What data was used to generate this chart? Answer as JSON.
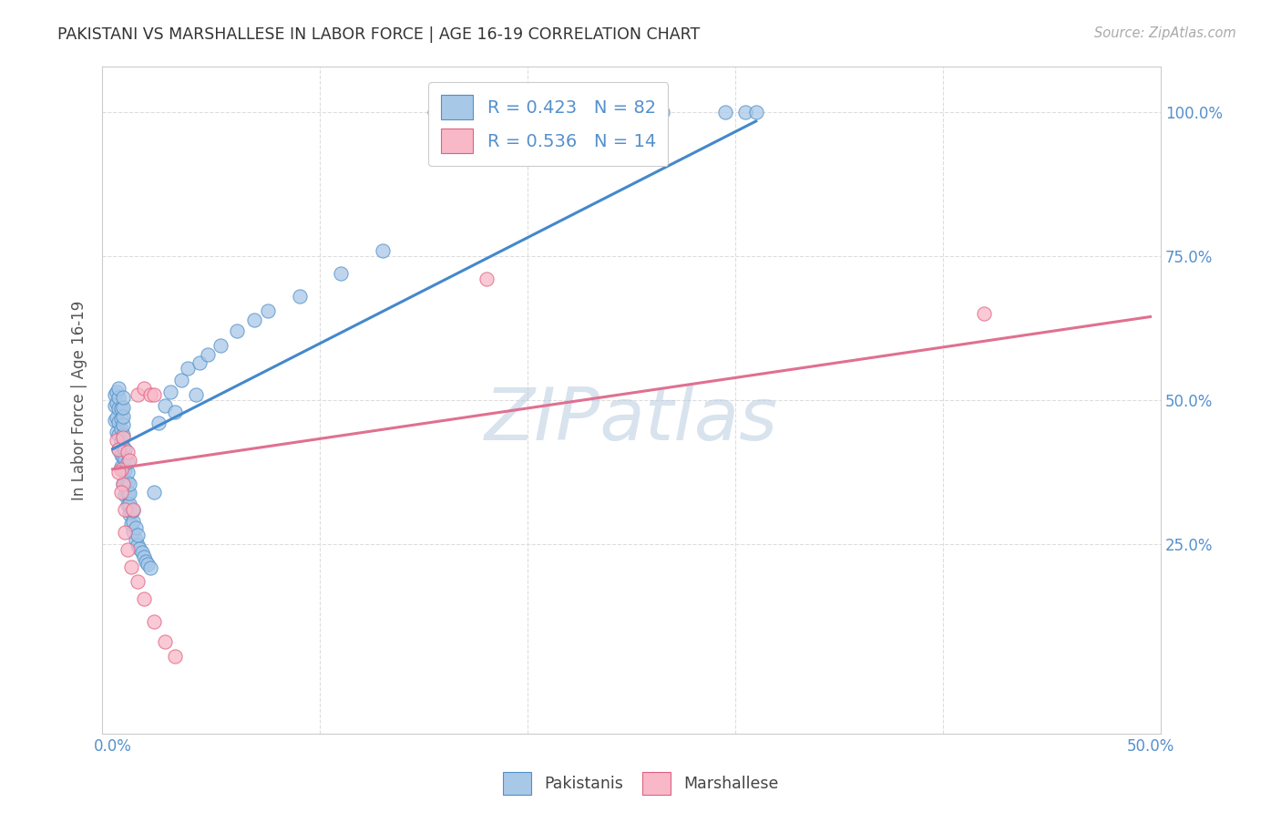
{
  "title": "PAKISTANI VS MARSHALLESE IN LABOR FORCE | AGE 16-19 CORRELATION CHART",
  "source": "Source: ZipAtlas.com",
  "ylabel_label": "In Labor Force | Age 16-19",
  "R_blue": 0.423,
  "N_blue": 82,
  "R_pink": 0.536,
  "N_pink": 14,
  "blue_fill": "#A8C8E8",
  "blue_edge": "#5090C8",
  "pink_fill": "#F8B8C8",
  "pink_edge": "#E06080",
  "trend_blue": "#4488CC",
  "trend_pink": "#E07090",
  "watermark_color": "#B8CCE0",
  "background_color": "#FFFFFF",
  "title_color": "#333333",
  "source_color": "#AAAAAA",
  "tick_color": "#5590CC",
  "ylabel_color": "#555555",
  "grid_color": "#DDDDDD",
  "pak_x": [
    0.001,
    0.001,
    0.001,
    0.002,
    0.002,
    0.002,
    0.002,
    0.003,
    0.003,
    0.003,
    0.003,
    0.003,
    0.003,
    0.004,
    0.004,
    0.004,
    0.004,
    0.004,
    0.004,
    0.005,
    0.005,
    0.005,
    0.005,
    0.005,
    0.005,
    0.005,
    0.005,
    0.005,
    0.006,
    0.006,
    0.006,
    0.006,
    0.006,
    0.007,
    0.007,
    0.007,
    0.007,
    0.007,
    0.008,
    0.008,
    0.008,
    0.008,
    0.009,
    0.009,
    0.01,
    0.01,
    0.01,
    0.011,
    0.011,
    0.012,
    0.012,
    0.013,
    0.014,
    0.015,
    0.016,
    0.017,
    0.018,
    0.02,
    0.022,
    0.025,
    0.028,
    0.03,
    0.033,
    0.036,
    0.04,
    0.042,
    0.046,
    0.052,
    0.06,
    0.068,
    0.075,
    0.09,
    0.11,
    0.13,
    0.155,
    0.17,
    0.2,
    0.23,
    0.265,
    0.295,
    0.305,
    0.31
  ],
  "pak_y": [
    0.465,
    0.49,
    0.51,
    0.445,
    0.47,
    0.495,
    0.515,
    0.415,
    0.44,
    0.462,
    0.485,
    0.505,
    0.52,
    0.385,
    0.405,
    0.428,
    0.45,
    0.468,
    0.485,
    0.355,
    0.378,
    0.4,
    0.42,
    0.44,
    0.458,
    0.472,
    0.488,
    0.505,
    0.335,
    0.358,
    0.378,
    0.398,
    0.415,
    0.318,
    0.338,
    0.358,
    0.375,
    0.392,
    0.302,
    0.32,
    0.338,
    0.355,
    0.285,
    0.305,
    0.272,
    0.29,
    0.308,
    0.258,
    0.278,
    0.248,
    0.265,
    0.242,
    0.235,
    0.228,
    0.22,
    0.215,
    0.208,
    0.34,
    0.46,
    0.49,
    0.515,
    0.48,
    0.535,
    0.555,
    0.51,
    0.565,
    0.58,
    0.595,
    0.62,
    0.64,
    0.655,
    0.68,
    0.72,
    0.76,
    1.0,
    1.0,
    1.0,
    1.0,
    1.0,
    1.0,
    1.0,
    1.0
  ],
  "marsh_x": [
    0.002,
    0.003,
    0.004,
    0.005,
    0.005,
    0.006,
    0.007,
    0.008,
    0.01,
    0.012,
    0.015,
    0.018,
    0.02,
    0.18,
    0.42
  ],
  "marsh_y": [
    0.43,
    0.415,
    0.38,
    0.435,
    0.355,
    0.31,
    0.41,
    0.395,
    0.31,
    0.51,
    0.52,
    0.51,
    0.51,
    0.71,
    0.65
  ],
  "marsh_low_x": [
    0.003,
    0.004,
    0.006,
    0.007,
    0.009,
    0.012,
    0.015,
    0.02,
    0.025,
    0.03
  ],
  "marsh_low_y": [
    0.375,
    0.34,
    0.27,
    0.24,
    0.21,
    0.185,
    0.155,
    0.115,
    0.08,
    0.055
  ],
  "xlim": [
    -0.005,
    0.505
  ],
  "ylim": [
    -0.08,
    1.08
  ],
  "xtick_pos": [
    0.0,
    0.1,
    0.2,
    0.3,
    0.4,
    0.5
  ],
  "xtick_lab": [
    "0.0%",
    "",
    "",
    "",
    "",
    "50.0%"
  ],
  "ytick_pos": [
    0.25,
    0.5,
    0.75,
    1.0
  ],
  "ytick_lab": [
    "25.0%",
    "50.0%",
    "75.0%",
    "100.0%"
  ],
  "blue_line_x": [
    0.0,
    0.31
  ],
  "blue_line_y": [
    0.415,
    0.985
  ],
  "pink_line_x": [
    0.0,
    0.5
  ],
  "pink_line_y": [
    0.38,
    0.645
  ]
}
